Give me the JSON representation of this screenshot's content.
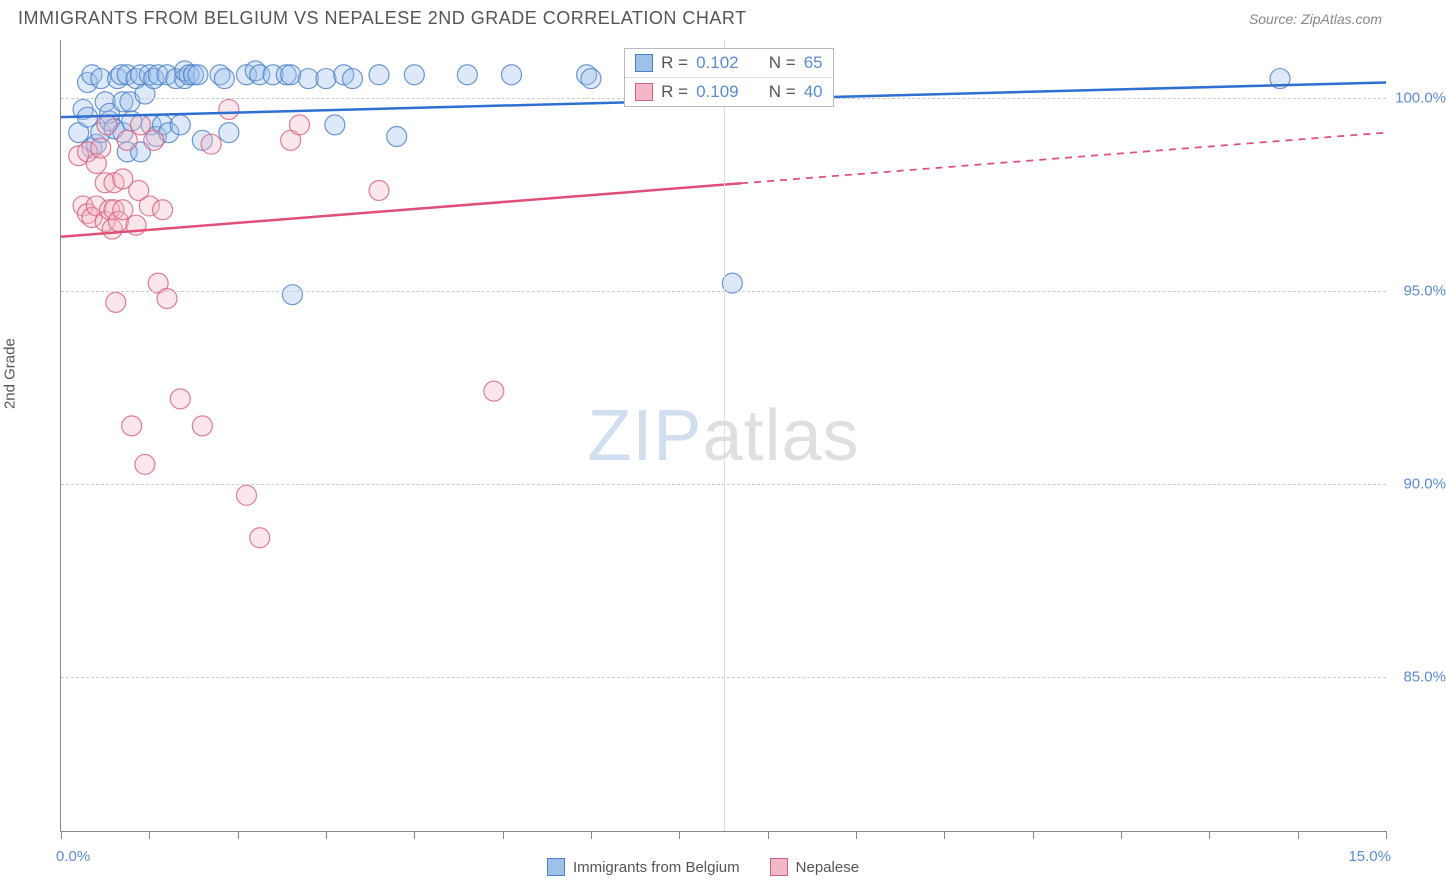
{
  "header": {
    "title": "IMMIGRANTS FROM BELGIUM VS NEPALESE 2ND GRADE CORRELATION CHART",
    "source": "Source: ZipAtlas.com"
  },
  "chart": {
    "type": "scatter",
    "ylabel": "2nd Grade",
    "background_color": "#ffffff",
    "grid_color": "#cccccc",
    "grid_dash": "4,4",
    "axis_color": "#888888",
    "tick_label_color": "#5b8bd4",
    "tick_fontsize": 15,
    "label_fontsize": 15,
    "title_fontsize": 18,
    "title_color": "#555555",
    "xlim": [
      0,
      15
    ],
    "ylim": [
      81,
      101.5
    ],
    "x_min_label": "0.0%",
    "x_max_label": "15.0%",
    "yticks": [
      85,
      90,
      95,
      100
    ],
    "ytick_labels": [
      "85.0%",
      "90.0%",
      "95.0%",
      "100.0%"
    ],
    "xtick_positions": [
      0,
      1,
      2,
      3,
      4,
      5,
      6,
      7,
      8,
      9,
      10,
      11,
      12,
      13,
      14,
      15
    ],
    "vgrid_positions": [
      7.5
    ],
    "marker_radius": 10,
    "marker_fill_opacity": 0.35,
    "marker_stroke_opacity": 0.8,
    "line_width_trend": 2.5,
    "watermark": {
      "part1": "ZIP",
      "part2": "atlas"
    },
    "series": [
      {
        "key": "belgium",
        "label": "Immigrants from Belgium",
        "color_fill": "#9ec1ea",
        "color_stroke": "#4a7fc9",
        "trend_color": "#2e6fd1",
        "r": "0.102",
        "n": "65",
        "trend": {
          "x0": 0,
          "y0": 99.5,
          "x1": 15,
          "y1": 100.4,
          "x_solid_max": 15
        },
        "points": [
          [
            0.2,
            99.1
          ],
          [
            0.25,
            99.7
          ],
          [
            0.3,
            99.5
          ],
          [
            0.3,
            100.4
          ],
          [
            0.35,
            100.6
          ],
          [
            0.35,
            98.7
          ],
          [
            0.4,
            98.8
          ],
          [
            0.45,
            99.1
          ],
          [
            0.45,
            100.5
          ],
          [
            0.5,
            99.9
          ],
          [
            0.55,
            99.4
          ],
          [
            0.55,
            99.6
          ],
          [
            0.6,
            99.2
          ],
          [
            0.64,
            100.5
          ],
          [
            0.68,
            100.6
          ],
          [
            0.7,
            99.1
          ],
          [
            0.7,
            99.9
          ],
          [
            0.75,
            100.6
          ],
          [
            0.75,
            98.6
          ],
          [
            0.78,
            99.9
          ],
          [
            0.8,
            99.4
          ],
          [
            0.85,
            100.5
          ],
          [
            0.9,
            100.6
          ],
          [
            0.9,
            98.6
          ],
          [
            0.95,
            100.1
          ],
          [
            1.0,
            100.6
          ],
          [
            1.02,
            99.3
          ],
          [
            1.05,
            100.5
          ],
          [
            1.08,
            99.0
          ],
          [
            1.1,
            100.6
          ],
          [
            1.15,
            99.3
          ],
          [
            1.2,
            100.6
          ],
          [
            1.22,
            99.1
          ],
          [
            1.3,
            100.5
          ],
          [
            1.35,
            99.3
          ],
          [
            1.4,
            100.5
          ],
          [
            1.4,
            100.7
          ],
          [
            1.45,
            100.6
          ],
          [
            1.5,
            100.6
          ],
          [
            1.55,
            100.6
          ],
          [
            1.6,
            98.9
          ],
          [
            1.8,
            100.6
          ],
          [
            1.85,
            100.5
          ],
          [
            1.9,
            99.1
          ],
          [
            2.1,
            100.6
          ],
          [
            2.2,
            100.7
          ],
          [
            2.25,
            100.6
          ],
          [
            2.4,
            100.6
          ],
          [
            2.55,
            100.6
          ],
          [
            2.6,
            100.6
          ],
          [
            2.62,
            94.9
          ],
          [
            2.8,
            100.5
          ],
          [
            3.0,
            100.5
          ],
          [
            3.1,
            99.3
          ],
          [
            3.2,
            100.6
          ],
          [
            3.3,
            100.5
          ],
          [
            3.6,
            100.6
          ],
          [
            3.8,
            99.0
          ],
          [
            4.0,
            100.6
          ],
          [
            4.6,
            100.6
          ],
          [
            5.1,
            100.6
          ],
          [
            5.95,
            100.6
          ],
          [
            6.0,
            100.5
          ],
          [
            7.6,
            95.2
          ],
          [
            13.8,
            100.5
          ]
        ]
      },
      {
        "key": "nepalese",
        "label": "Nepalese",
        "color_fill": "#f2b8c6",
        "color_stroke": "#d85f7f",
        "trend_color": "#e04f78",
        "r": "0.109",
        "n": "40",
        "trend": {
          "x0": 0,
          "y0": 96.4,
          "x1": 15,
          "y1": 99.1,
          "x_solid_max": 7.7
        },
        "points": [
          [
            0.2,
            98.5
          ],
          [
            0.25,
            97.2
          ],
          [
            0.3,
            98.6
          ],
          [
            0.3,
            97.0
          ],
          [
            0.35,
            96.9
          ],
          [
            0.4,
            98.3
          ],
          [
            0.4,
            97.2
          ],
          [
            0.45,
            98.7
          ],
          [
            0.5,
            96.8
          ],
          [
            0.5,
            97.8
          ],
          [
            0.52,
            99.3
          ],
          [
            0.55,
            97.1
          ],
          [
            0.58,
            96.6
          ],
          [
            0.6,
            97.8
          ],
          [
            0.6,
            97.1
          ],
          [
            0.62,
            94.7
          ],
          [
            0.65,
            96.8
          ],
          [
            0.7,
            97.9
          ],
          [
            0.7,
            97.1
          ],
          [
            0.75,
            98.9
          ],
          [
            0.8,
            91.5
          ],
          [
            0.85,
            96.7
          ],
          [
            0.88,
            97.6
          ],
          [
            0.9,
            99.3
          ],
          [
            0.95,
            90.5
          ],
          [
            1.0,
            97.2
          ],
          [
            1.05,
            98.9
          ],
          [
            1.1,
            95.2
          ],
          [
            1.15,
            97.1
          ],
          [
            1.2,
            94.8
          ],
          [
            1.35,
            92.2
          ],
          [
            1.6,
            91.5
          ],
          [
            1.7,
            98.8
          ],
          [
            1.9,
            99.7
          ],
          [
            2.1,
            89.7
          ],
          [
            2.25,
            88.6
          ],
          [
            2.6,
            98.9
          ],
          [
            2.7,
            99.3
          ],
          [
            3.6,
            97.6
          ],
          [
            4.9,
            92.4
          ]
        ]
      }
    ],
    "stats_box": {
      "left_pct": 42.5,
      "top_pct": 1.0,
      "r_prefix": "R = ",
      "n_prefix": "N = "
    },
    "bottom_legend": {
      "fontsize": 15,
      "text_color": "#555555"
    }
  }
}
